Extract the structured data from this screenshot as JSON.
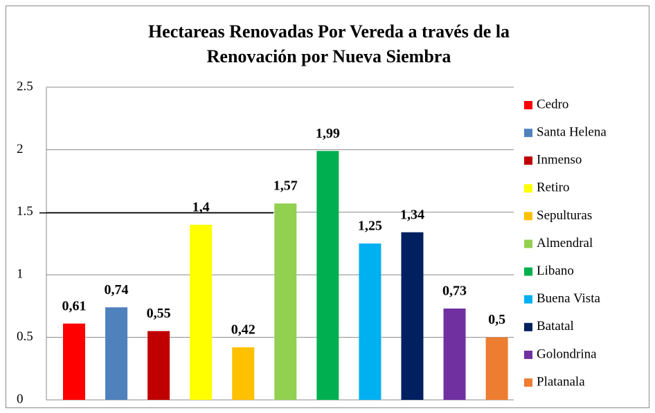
{
  "chart_data": {
    "type": "bar",
    "title": [
      "Hectareas Renovadas Por Vereda a través de la",
      "Renovación por Nueva Siembra"
    ],
    "categories": [
      "Cedro",
      "Santa Helena",
      "Inmenso",
      "Retiro",
      "Sepulturas",
      "Almendral",
      "Libano",
      "Buena Vista",
      "Batatal",
      "Golondrina",
      "Platanala"
    ],
    "values": [
      0.61,
      0.74,
      0.55,
      1.4,
      0.42,
      1.57,
      1.99,
      1.25,
      1.34,
      0.73,
      0.5
    ],
    "value_labels": [
      "0,61",
      "0,74",
      "0,55",
      "1,4",
      "0,42",
      "1,57",
      "1,99",
      "1,25",
      "1,34",
      "0,73",
      "0,5"
    ],
    "colors": [
      "#ff0000",
      "#4f81bd",
      "#c00000",
      "#ffff00",
      "#ffc000",
      "#92d050",
      "#00b050",
      "#00b0f0",
      "#002060",
      "#7030a0",
      "#ed7d31"
    ],
    "ylim": [
      0,
      2.5
    ],
    "yticks": [
      0,
      0.5,
      1,
      1.5,
      2,
      2.5
    ],
    "grid": true,
    "legend": "right"
  }
}
